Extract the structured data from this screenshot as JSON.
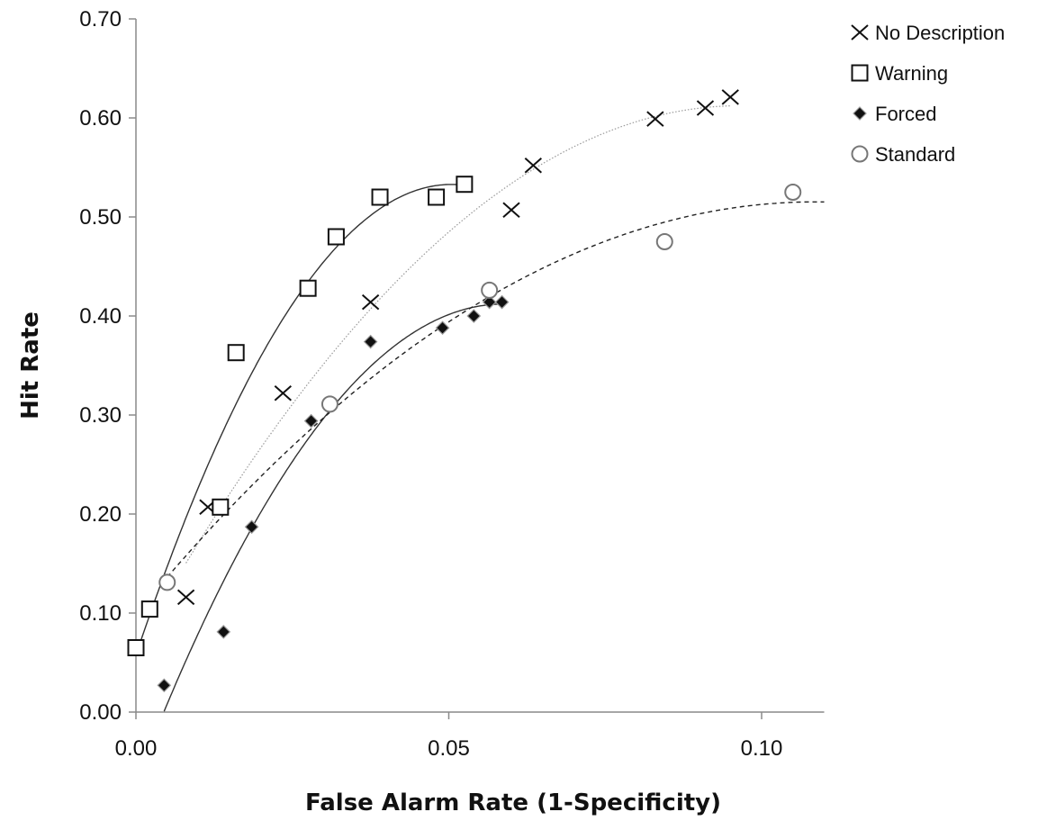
{
  "chart_data": {
    "type": "scatter",
    "xlabel": "False Alarm Rate (1-Specificity)",
    "ylabel": "Hit Rate",
    "xlim": [
      0,
      0.11
    ],
    "ylim": [
      0,
      0.7
    ],
    "x_ticks": [
      0.0,
      0.05,
      0.1
    ],
    "x_tick_labels": [
      "0.00",
      "0.05",
      "0.10"
    ],
    "y_ticks": [
      0.0,
      0.1,
      0.2,
      0.3,
      0.4,
      0.5,
      0.6,
      0.7
    ],
    "y_tick_labels": [
      "0.00",
      "0.10",
      "0.20",
      "0.30",
      "0.40",
      "0.50",
      "0.60",
      "0.70"
    ],
    "grid": false,
    "legend_position": "top-right",
    "series": [
      {
        "name": "No Description",
        "marker": "x",
        "color": "#111111",
        "fit_style": "dotted",
        "points": [
          [
            0.0115,
            0.207
          ],
          [
            0.008,
            0.116
          ],
          [
            0.0235,
            0.322
          ],
          [
            0.0375,
            0.414
          ],
          [
            0.06,
            0.507
          ],
          [
            0.0635,
            0.552
          ],
          [
            0.083,
            0.599
          ],
          [
            0.091,
            0.61
          ],
          [
            0.095,
            0.621
          ]
        ]
      },
      {
        "name": "Warning",
        "marker": "square",
        "color": "#111111",
        "fit_style": "solid",
        "points": [
          [
            0.0,
            0.065
          ],
          [
            0.0022,
            0.104
          ],
          [
            0.0135,
            0.207
          ],
          [
            0.016,
            0.363
          ],
          [
            0.0275,
            0.428
          ],
          [
            0.032,
            0.48
          ],
          [
            0.039,
            0.52
          ],
          [
            0.048,
            0.52
          ],
          [
            0.0525,
            0.533
          ]
        ]
      },
      {
        "name": "Forced",
        "marker": "diamond",
        "color": "#111111",
        "fit_style": "solid",
        "points": [
          [
            0.0045,
            0.027
          ],
          [
            0.014,
            0.081
          ],
          [
            0.0185,
            0.187
          ],
          [
            0.028,
            0.294
          ],
          [
            0.0375,
            0.374
          ],
          [
            0.049,
            0.388
          ],
          [
            0.054,
            0.4
          ],
          [
            0.0565,
            0.414
          ],
          [
            0.0585,
            0.414
          ]
        ]
      },
      {
        "name": "Standard",
        "marker": "circle",
        "color": "#777777",
        "fit_style": "dashed",
        "points": [
          [
            0.005,
            0.131
          ],
          [
            0.031,
            0.311
          ],
          [
            0.0565,
            0.426
          ],
          [
            0.0845,
            0.475
          ],
          [
            0.105,
            0.525
          ]
        ]
      }
    ]
  }
}
